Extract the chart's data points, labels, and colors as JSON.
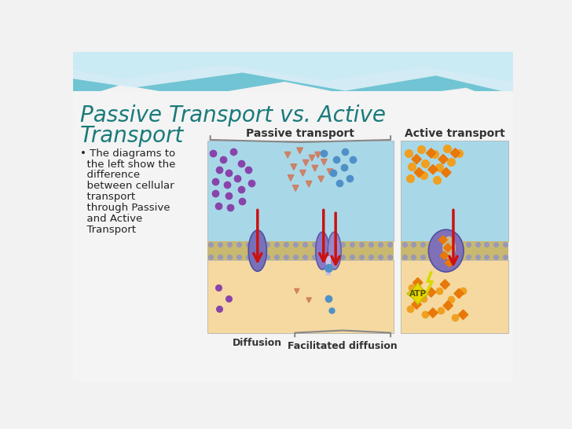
{
  "title_line1": "Passive Transport vs. Active",
  "title_line2": "Transport",
  "title_color": "#1a7a7a",
  "bg_color": "#e8f4f8",
  "slide_bg": "#f2f2f2",
  "wave_color1": "#5bbcce",
  "wave_color2": "#90d4e8",
  "wave_color3": "#c8eaf4",
  "bullet_text_lines": [
    "• The diagrams to",
    "  the left show the",
    "  difference",
    "  between cellular",
    "  transport",
    "  through Passive",
    "  and Active",
    "  Transport"
  ],
  "bullet_color": "#4ab5c8",
  "text_color": "#222222",
  "passive_label": "Passive transport",
  "active_label": "Active transport",
  "diffusion_label": "Diffusion",
  "facilitated_label": "Facilitated diffusion",
  "panel_top_color": "#a8d8e8",
  "panel_bot_color": "#f5d9a0",
  "membrane_tan": "#c8b878",
  "membrane_gray_dot": "#9898b8",
  "protein_color": "#8878c0",
  "protein_edge": "#5a4a90",
  "arrow_red": "#cc1111",
  "purple_dot": "#8844aa",
  "blue_dot": "#5090c8",
  "orange_circle": "#f0a020",
  "orange_diamond": "#e87808",
  "triangle_salmon": "#d07858",
  "atp_yellow": "#e8d800",
  "atp_text": "#555500",
  "label_color": "#333333",
  "bracket_color": "#888888"
}
